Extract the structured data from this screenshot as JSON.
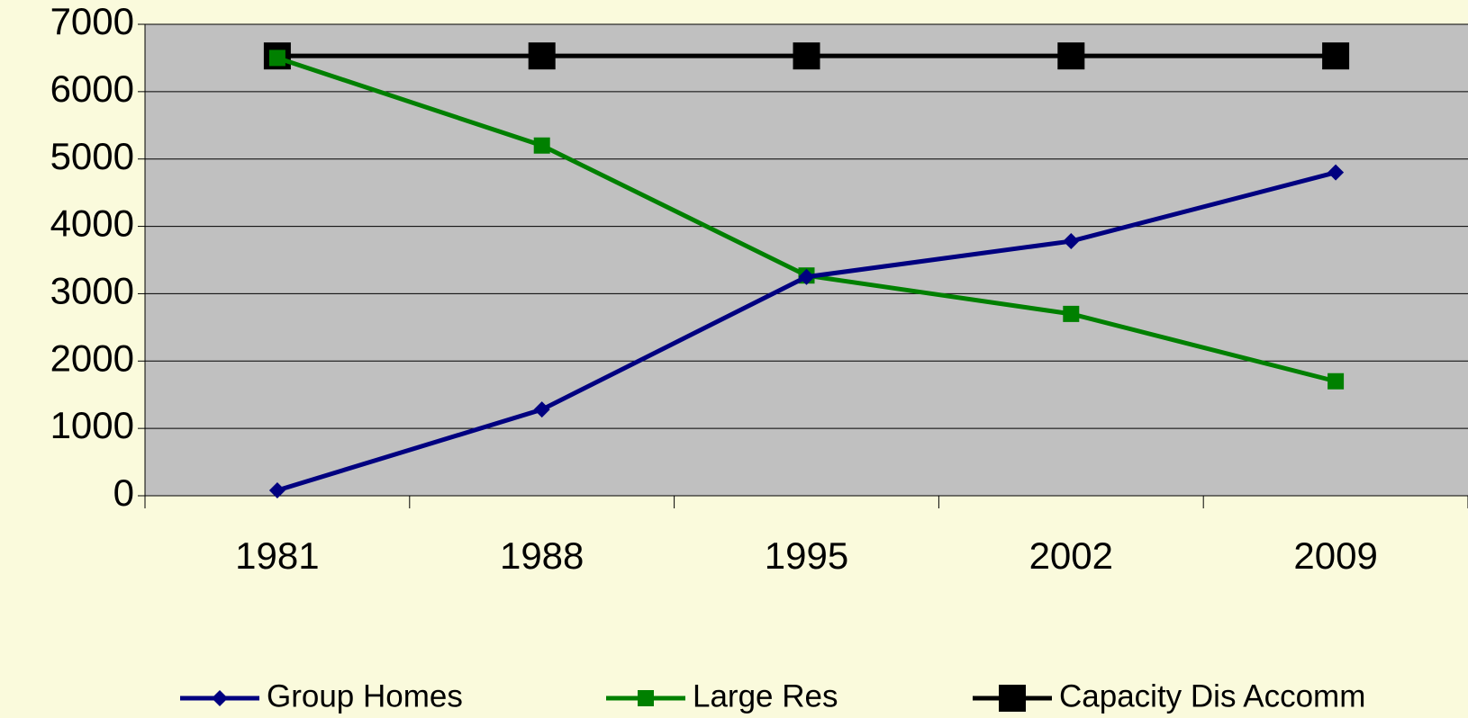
{
  "chart_data": {
    "type": "line",
    "categories": [
      "1981",
      "1988",
      "1995",
      "2002",
      "2009"
    ],
    "series": [
      {
        "name": "Group Homes",
        "color": "#000080",
        "marker": "diamond",
        "values": [
          80,
          1280,
          3250,
          3780,
          4800
        ]
      },
      {
        "name": "Large Res",
        "color": "#008000",
        "marker": "square",
        "values": [
          6500,
          5200,
          3270,
          2700,
          1700
        ]
      },
      {
        "name": "Capacity Dis Accomm",
        "color": "#000000",
        "marker": "square",
        "values": [
          6530,
          6530,
          6530,
          6530,
          6530
        ]
      }
    ],
    "ylim": [
      0,
      7000
    ],
    "yticks": [
      0,
      1000,
      2000,
      3000,
      4000,
      5000,
      6000,
      7000
    ],
    "grid": true,
    "legend": "bottom"
  }
}
